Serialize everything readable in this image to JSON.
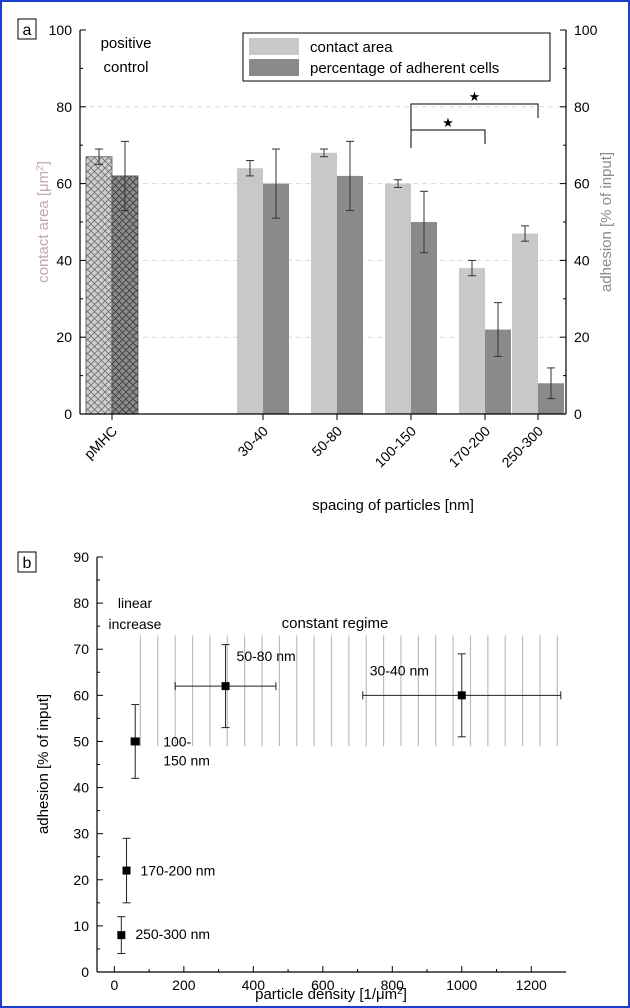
{
  "colors": {
    "contact_area": "#c8c8c8",
    "adherent_cells": "#8a8a8a",
    "frame": "#1a3fd1",
    "contact_axis_label": "#c4a8a8",
    "adhesion_axis_label": "#8a8a8a",
    "hatch_lines": "#bdbdbd",
    "grid": "#d9d9d9"
  },
  "chart_data": [
    {
      "type": "bar",
      "panel_label": "a",
      "categories": [
        "pMHC",
        "30-40",
        "50-80",
        "100-150",
        "170-200",
        "250-300"
      ],
      "series": [
        {
          "name": "contact area",
          "axis": "left",
          "values": [
            67,
            64,
            68,
            60,
            38,
            47
          ],
          "errors": [
            2,
            2,
            1,
            1,
            2,
            2
          ]
        },
        {
          "name": "percentage of adherent cells",
          "axis": "right",
          "values": [
            62,
            60,
            62,
            50,
            22,
            8
          ],
          "errors": [
            9,
            9,
            9,
            8,
            7,
            4
          ]
        }
      ],
      "xlabel": "spacing of particles [nm]",
      "ylabel_left": "contact area [μm²]",
      "ylabel_right": "adhesion [% of input]",
      "ylim_left": [
        0,
        100
      ],
      "ylim_right": [
        0,
        100
      ],
      "left_ticks": [
        "0",
        "20",
        "40",
        "60",
        "80",
        "100"
      ],
      "right_ticks": [
        "0",
        "20",
        "40",
        "60",
        "80",
        "100"
      ],
      "grid": "dashed horizontal",
      "legend_placement": "top-right",
      "annotation_control": [
        "positive",
        "control"
      ],
      "significance": [
        {
          "from": "100-150",
          "to": "170-200",
          "label": "★"
        },
        {
          "from": "100-150",
          "to": "250-300",
          "label": "★"
        }
      ]
    },
    {
      "type": "scatter",
      "panel_label": "b",
      "points": [
        {
          "x": 1000,
          "y": 60,
          "xerr": 285,
          "yerr": 9,
          "label": "30-40 nm"
        },
        {
          "x": 320,
          "y": 62,
          "xerr": 145,
          "yerr": 9,
          "label": "50-80 nm"
        },
        {
          "x": 60,
          "y": 50,
          "xerr": 12,
          "yerr": 8,
          "label": "100-\n150 nm"
        },
        {
          "x": 35,
          "y": 22,
          "xerr": 0,
          "yerr": 7,
          "label": "170-200 nm"
        },
        {
          "x": 20,
          "y": 8,
          "xerr": 0,
          "yerr": 4,
          "label": "250-300 nm"
        }
      ],
      "xlabel": "particle density [1/μm²]",
      "ylabel": "adhesion [% of input]",
      "xlim": [
        -50,
        1300
      ],
      "ylim": [
        0,
        90
      ],
      "x_ticks": [
        "0",
        "200",
        "400",
        "600",
        "800",
        "1000",
        "1200"
      ],
      "y_ticks": [
        "0",
        "10",
        "20",
        "30",
        "40",
        "50",
        "60",
        "70",
        "80",
        "90"
      ],
      "annotations": {
        "linear": [
          "linear",
          "increase"
        ],
        "constant": "constant regime"
      }
    }
  ]
}
